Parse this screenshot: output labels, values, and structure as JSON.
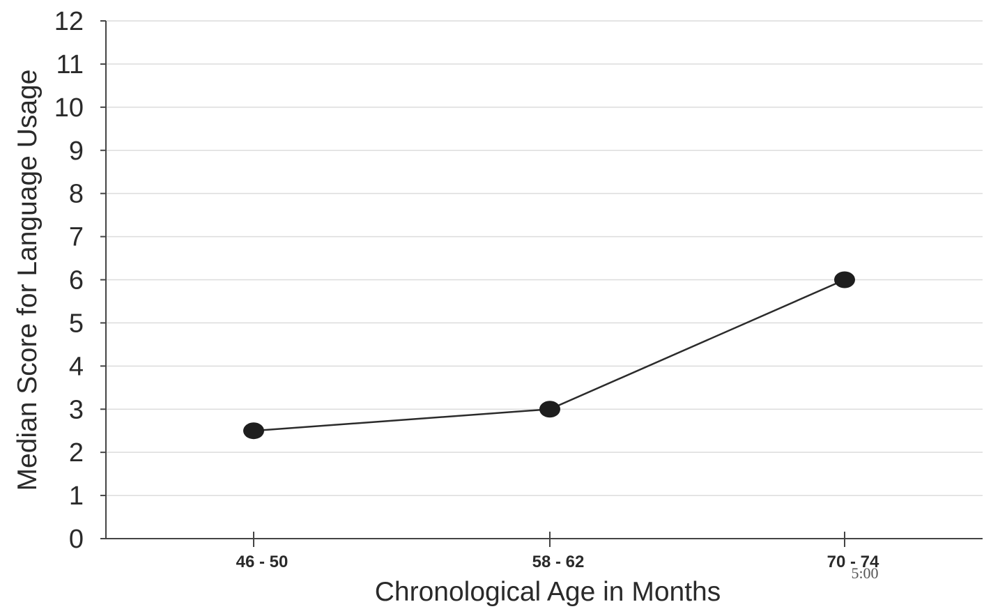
{
  "chart_data": {
    "type": "line",
    "title": "",
    "xlabel": "Chronological Age in Months",
    "ylabel": "Median Score for Language Usage",
    "categories": [
      "46 - 50",
      "58 - 62",
      "70 - 74"
    ],
    "series": [
      {
        "values": [
          2.5,
          3,
          6
        ]
      }
    ],
    "ylim": [
      0,
      12
    ],
    "yticks": [
      0,
      1,
      2,
      3,
      4,
      5,
      6,
      7,
      8,
      9,
      10,
      11,
      12
    ],
    "grid": true,
    "annotations": [
      "5:00"
    ],
    "colors": {
      "line": "#2b2b2b",
      "marker": "#1e1e1e",
      "grid": "#dcdcdc",
      "axis": "#444444",
      "text": "#2a2a2a"
    }
  }
}
